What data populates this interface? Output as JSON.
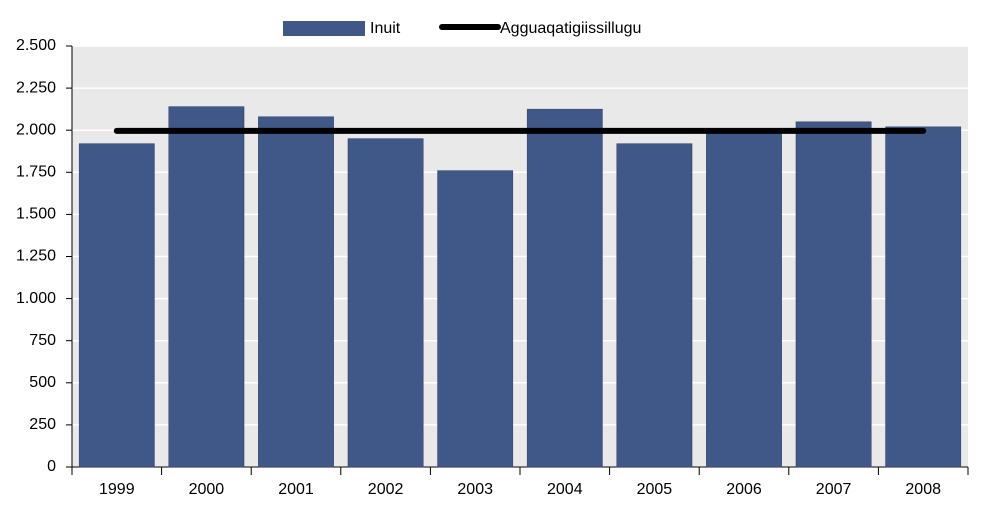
{
  "chart_data": {
    "type": "bar",
    "categories": [
      "1999",
      "2000",
      "2001",
      "2002",
      "2003",
      "2004",
      "2005",
      "2006",
      "2007",
      "2008"
    ],
    "series": [
      {
        "name": "Inuit",
        "type": "bar",
        "color": "#3f5887",
        "values": [
          1920,
          2140,
          2080,
          1950,
          1760,
          2125,
          1920,
          1990,
          2050,
          2020
        ]
      },
      {
        "name": "Agguaqatigiissillugu",
        "type": "line",
        "color": "#000000",
        "values": [
          1996,
          1996,
          1996,
          1996,
          1996,
          1996,
          1996,
          1996,
          1996,
          1996
        ]
      }
    ],
    "ylim": [
      0,
      2500
    ],
    "yticks": [
      0,
      250,
      500,
      750,
      {
        "value": 1000,
        "label": "1.000"
      },
      {
        "value": 1250,
        "label": "1.250"
      },
      {
        "value": 1500,
        "label": "1.500"
      },
      {
        "value": 1750,
        "label": "1.750"
      },
      {
        "value": 2000,
        "label": "2.000"
      },
      {
        "value": 2250,
        "label": "2.250"
      },
      {
        "value": 2500,
        "label": "2.500"
      }
    ],
    "grid": true,
    "legend": "top"
  }
}
